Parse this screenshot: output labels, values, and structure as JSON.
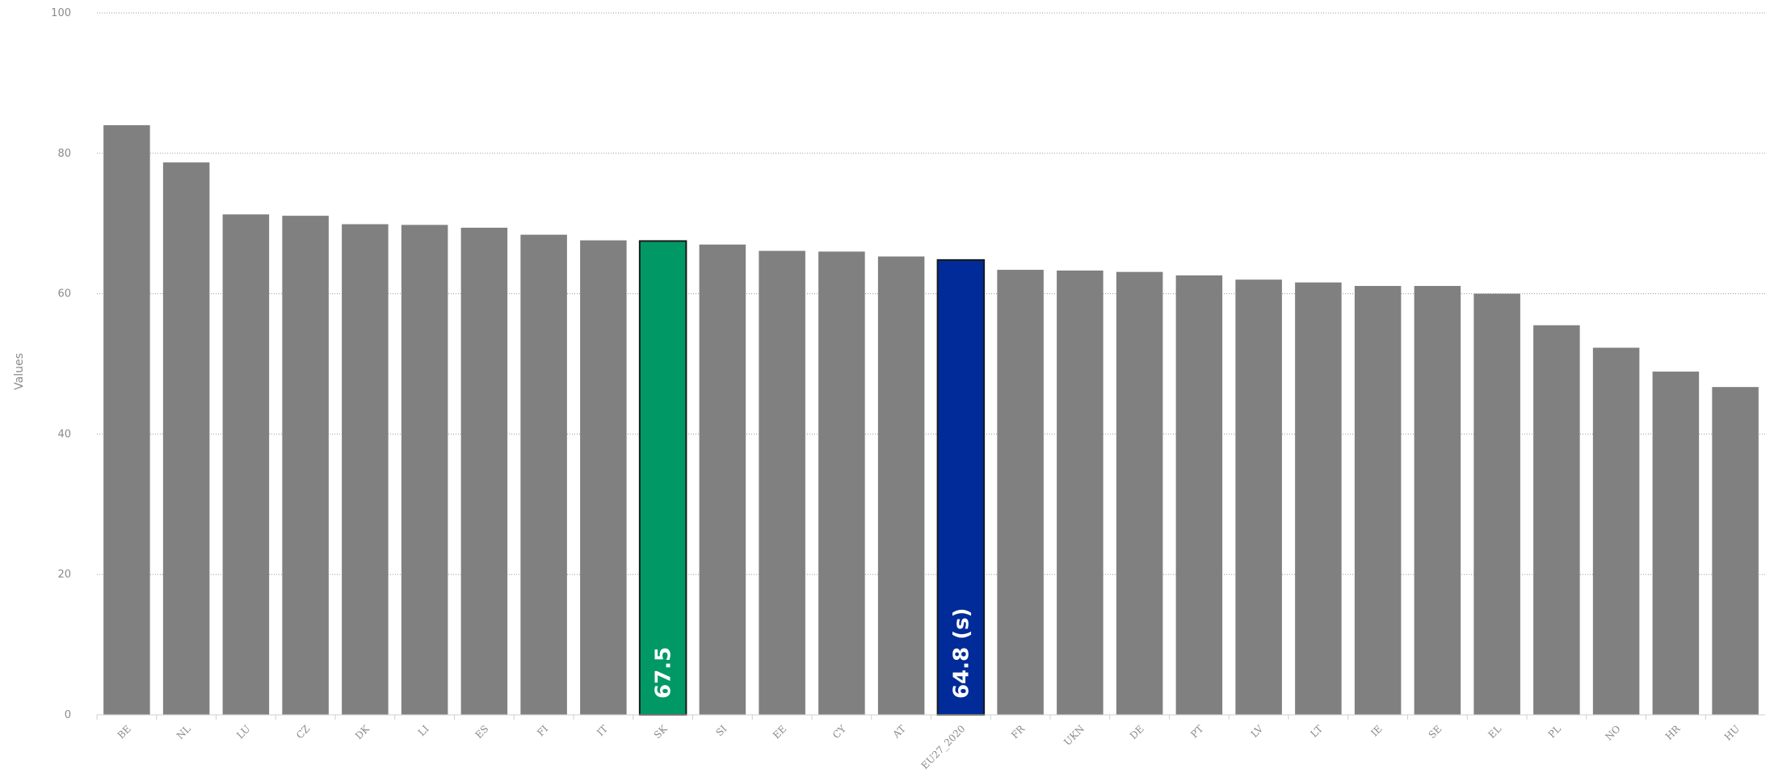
{
  "chart_data": {
    "type": "bar",
    "ylabel": "Values",
    "ylim": [
      0,
      100
    ],
    "yticks": [
      "0",
      "20",
      "40",
      "60",
      "80",
      "100"
    ],
    "grid": true,
    "categories": [
      "BE",
      "NL",
      "LU",
      "CZ",
      "DK",
      "LI",
      "ES",
      "FI",
      "IT",
      "SK",
      "SI",
      "EE",
      "CY",
      "AT",
      "EU27_2020",
      "FR",
      "UKN",
      "DE",
      "PT",
      "LV",
      "LT",
      "IE",
      "SE",
      "EL",
      "PL",
      "NO",
      "HR",
      "HU"
    ],
    "values": [
      84.0,
      78.7,
      71.3,
      71.1,
      69.9,
      69.8,
      69.4,
      68.4,
      67.6,
      67.5,
      67.0,
      66.1,
      66.0,
      65.3,
      64.8,
      63.4,
      63.3,
      63.1,
      62.6,
      62.0,
      61.6,
      61.1,
      61.1,
      60.0,
      55.5,
      52.3,
      48.9,
      46.7
    ],
    "highlight": {
      "SK": {
        "color": "#009966",
        "label": "67.5"
      },
      "EU27_2020": {
        "color": "#002b99",
        "label": "64.8 (s)"
      }
    },
    "default_color": "#808080",
    "grid_color": "#9a9a9a"
  }
}
